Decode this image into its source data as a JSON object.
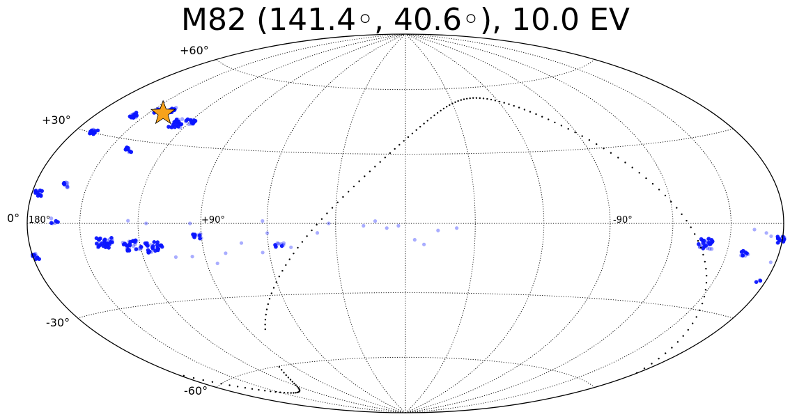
{
  "chart_data": {
    "type": "scatter",
    "projection": "aitoff-hammer (all-sky ellipse)",
    "title": "M82 (141.4◦, 40.6◦), 10.0 EV",
    "grid": true,
    "latitude_tick_labels": [
      {
        "lat": 60,
        "text": "+60°"
      },
      {
        "lat": 30,
        "text": "+30°"
      },
      {
        "lat": 0,
        "text": "0°"
      },
      {
        "lat": -30,
        "text": "-30°"
      },
      {
        "lat": -60,
        "text": "-60°"
      }
    ],
    "longitude_tick_labels": [
      {
        "lon": 180,
        "text": "180°"
      },
      {
        "lon": 90,
        "text": "+90°"
      },
      {
        "lon": -90,
        "text": "-90°"
      }
    ],
    "source_marker": {
      "name": "M82",
      "lon": 141.4,
      "lat": 40.6,
      "color": "#f7a21b",
      "marker": "star"
    },
    "colors": {
      "events": "#0a14ff",
      "grid": "#000000",
      "boundary": "#000000"
    },
    "event_clusters_dense": [
      {
        "lon": 168.4,
        "lat": 30.2,
        "n": 5
      },
      {
        "lon": 156.3,
        "lat": 37.9,
        "n": 6
      },
      {
        "lon": 146.2,
        "lat": 40.9,
        "n": 4
      },
      {
        "lon": 139.0,
        "lat": 42.3,
        "n": 5
      },
      {
        "lon": 124.7,
        "lat": 38.2,
        "n": 8
      },
      {
        "lon": 119.2,
        "lat": 39.2,
        "n": 4
      },
      {
        "lon": 138.9,
        "lat": 26.6,
        "n": 4
      },
      {
        "lon": 176.1,
        "lat": 9.5,
        "n": 4
      },
      {
        "lon": 162.6,
        "lat": 12.6,
        "n": 3
      },
      {
        "lon": 164.0,
        "lat": 1.0,
        "n": 2
      },
      {
        "lon": 138.0,
        "lat": -7.0,
        "n": 10
      },
      {
        "lon": 124.0,
        "lat": -8.0,
        "n": 10
      },
      {
        "lon": 113.0,
        "lat": -9.0,
        "n": 8
      },
      {
        "lon": 92.0,
        "lat": -5.0,
        "n": 4
      },
      {
        "lon": 179.0,
        "lat": -10.0,
        "n": 4
      },
      {
        "lon": 55.0,
        "lat": -9.0,
        "n": 3
      },
      {
        "lon": -137.0,
        "lat": -7.0,
        "n": 8
      },
      {
        "lon": -160.0,
        "lat": -10.0,
        "n": 3
      },
      {
        "lon": -179.0,
        "lat": -5.0,
        "n": 6
      },
      {
        "lon": -175.0,
        "lat": -18.0,
        "n": 1
      }
    ],
    "event_points_faint": [
      {
        "lon": 125,
        "lat": 1
      },
      {
        "lon": 116,
        "lat": 0
      },
      {
        "lon": 95,
        "lat": 0
      },
      {
        "lon": 62,
        "lat": 1
      },
      {
        "lon": 60,
        "lat": -4
      },
      {
        "lon": 38,
        "lat": -4
      },
      {
        "lon": 33,
        "lat": 0
      },
      {
        "lon": 18,
        "lat": -1
      },
      {
        "lon": 13,
        "lat": 1
      },
      {
        "lon": 8,
        "lat": -2
      },
      {
        "lon": 3,
        "lat": -1
      },
      {
        "lon": -4,
        "lat": -7
      },
      {
        "lon": -8,
        "lat": -9
      },
      {
        "lon": -14,
        "lat": -3
      },
      {
        "lon": -22,
        "lat": -2
      },
      {
        "lon": 72,
        "lat": -8
      },
      {
        "lon": 80,
        "lat": -12
      },
      {
        "lon": 85,
        "lat": -16
      },
      {
        "lon": 104,
        "lat": -13
      },
      {
        "lon": 96,
        "lat": -13
      },
      {
        "lon": 63,
        "lat": -12
      },
      {
        "lon": 50,
        "lat": -10
      },
      {
        "lon": -163,
        "lat": -2
      },
      {
        "lon": -170,
        "lat": -3
      },
      {
        "lon": -173,
        "lat": -4
      },
      {
        "lon": -177,
        "lat": -12
      }
    ]
  }
}
